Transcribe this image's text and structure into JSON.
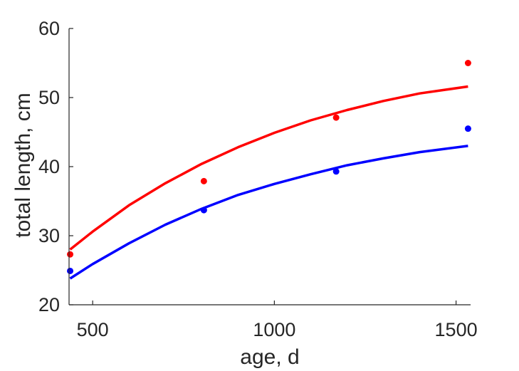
{
  "chart_data": {
    "type": "scatter",
    "xlabel": "age, d",
    "ylabel": "total length, cm",
    "xlim": [
      435,
      1540
    ],
    "ylim": [
      20,
      60
    ],
    "x_ticks": [
      500,
      1000,
      1500
    ],
    "y_ticks": [
      20,
      30,
      40,
      50,
      60
    ],
    "grid": false,
    "series": [
      {
        "color": "#ff0000",
        "points": [
          {
            "x": 438,
            "y": 27.3
          },
          {
            "x": 806,
            "y": 37.9
          },
          {
            "x": 1170,
            "y": 47.1
          },
          {
            "x": 1533,
            "y": 55.0
          }
        ],
        "fit_curve": [
          {
            "x": 438,
            "y": 28.0
          },
          {
            "x": 500,
            "y": 30.6
          },
          {
            "x": 600,
            "y": 34.4
          },
          {
            "x": 700,
            "y": 37.6
          },
          {
            "x": 800,
            "y": 40.4
          },
          {
            "x": 900,
            "y": 42.8
          },
          {
            "x": 1000,
            "y": 44.9
          },
          {
            "x": 1100,
            "y": 46.7
          },
          {
            "x": 1200,
            "y": 48.2
          },
          {
            "x": 1300,
            "y": 49.5
          },
          {
            "x": 1400,
            "y": 50.6
          },
          {
            "x": 1533,
            "y": 51.6
          }
        ]
      },
      {
        "color": "#0000ff",
        "points": [
          {
            "x": 438,
            "y": 24.9
          },
          {
            "x": 806,
            "y": 33.7
          },
          {
            "x": 1170,
            "y": 39.3
          },
          {
            "x": 1533,
            "y": 45.5
          }
        ],
        "fit_curve": [
          {
            "x": 438,
            "y": 23.8
          },
          {
            "x": 500,
            "y": 25.9
          },
          {
            "x": 600,
            "y": 28.9
          },
          {
            "x": 700,
            "y": 31.6
          },
          {
            "x": 800,
            "y": 33.9
          },
          {
            "x": 900,
            "y": 35.9
          },
          {
            "x": 1000,
            "y": 37.5
          },
          {
            "x": 1100,
            "y": 38.9
          },
          {
            "x": 1200,
            "y": 40.2
          },
          {
            "x": 1300,
            "y": 41.2
          },
          {
            "x": 1400,
            "y": 42.1
          },
          {
            "x": 1533,
            "y": 43.0
          }
        ]
      }
    ]
  }
}
